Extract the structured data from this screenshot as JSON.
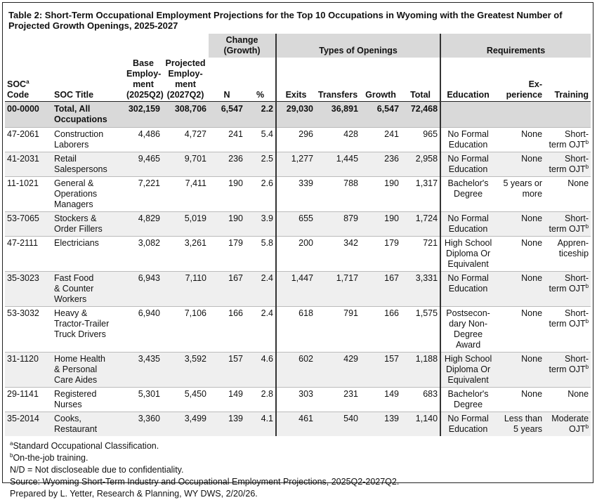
{
  "title": "Table 2: Short-Term Occupational Employment Projections for the Top 10 Occupations in Wyoming with the Greatest Number of Projected Growth Openings, 2025-2027",
  "group_headers": [
    "Change (Growth)",
    "Types of Openings",
    "Requirements"
  ],
  "columns": [
    {
      "text": "SOC",
      "sup": "a",
      "rest": " Code"
    },
    "SOC Title",
    "Base\nEmploy-\nment\n(2025Q2)",
    "Projected\nEmploy-\nment\n(2027Q2)",
    "N",
    "%",
    "Exits",
    "Transfers",
    "Growth",
    "Total",
    "Education",
    "Ex-\nperience",
    "Training"
  ],
  "total_row": [
    "00-0000",
    "Total, All\nOccupations",
    "302,159",
    "308,706",
    "6,547",
    "2.2",
    "29,030",
    "36,891",
    "6,547",
    "72,468"
  ],
  "rows": [
    [
      "47-2061",
      "Construction\nLaborers",
      "4,486",
      "4,727",
      "241",
      "5.4",
      "296",
      "428",
      "241",
      "965",
      "No Formal\nEducation",
      "None",
      {
        "text": "Short-\nterm OJT",
        "sup": "b"
      }
    ],
    [
      "41-2031",
      "Retail\nSalespersons",
      "9,465",
      "9,701",
      "236",
      "2.5",
      "1,277",
      "1,445",
      "236",
      "2,958",
      "No Formal\nEducation",
      "None",
      {
        "text": "Short-\nterm OJT",
        "sup": "b"
      }
    ],
    [
      "11-1021",
      "General &\nOperations\nManagers",
      "7,221",
      "7,411",
      "190",
      "2.6",
      "339",
      "788",
      "190",
      "1,317",
      "Bachelor's\nDegree",
      "5 years or\nmore",
      "None"
    ],
    [
      "53-7065",
      "Stockers &\nOrder Fillers",
      "4,829",
      "5,019",
      "190",
      "3.9",
      "655",
      "879",
      "190",
      "1,724",
      "No Formal\nEducation",
      "None",
      {
        "text": "Short-\nterm OJT",
        "sup": "b"
      }
    ],
    [
      "47-2111",
      "Electricians",
      "3,082",
      "3,261",
      "179",
      "5.8",
      "200",
      "342",
      "179",
      "721",
      "High School\nDiploma Or\nEquivalent",
      "None",
      "Appren-\nticeship"
    ],
    [
      "35-3023",
      "Fast Food\n& Counter\nWorkers",
      "6,943",
      "7,110",
      "167",
      "2.4",
      "1,447",
      "1,717",
      "167",
      "3,331",
      "No Formal\nEducation",
      "None",
      {
        "text": "Short-\nterm OJT",
        "sup": "b"
      }
    ],
    [
      "53-3032",
      "Heavy &\nTractor-Trailer\nTruck Drivers",
      "6,940",
      "7,106",
      "166",
      "2.4",
      "618",
      "791",
      "166",
      "1,575",
      "Postsecon-\ndary Non-\nDegree\nAward",
      "None",
      {
        "text": "Short-\nterm OJT",
        "sup": "b"
      }
    ],
    [
      "31-1120",
      "Home Health\n& Personal\nCare Aides",
      "3,435",
      "3,592",
      "157",
      "4.6",
      "602",
      "429",
      "157",
      "1,188",
      "High School\nDiploma Or\nEquivalent",
      "None",
      {
        "text": "Short-\nterm OJT",
        "sup": "b"
      }
    ],
    [
      "29-1141",
      "Registered\nNurses",
      "5,301",
      "5,450",
      "149",
      "2.8",
      "303",
      "231",
      "149",
      "683",
      "Bachelor's\nDegree",
      "None",
      "None"
    ],
    [
      "35-2014",
      "Cooks,\nRestaurant",
      "3,360",
      "3,499",
      "139",
      "4.1",
      "461",
      "540",
      "139",
      "1,140",
      "No Formal\nEducation",
      "Less than\n5 years",
      {
        "text": "Moderate\nOJT",
        "sup": "b"
      }
    ]
  ],
  "notes": [
    {
      "sup": "a",
      "text": "Standard Occupational Classification."
    },
    {
      "sup": "b",
      "text": "On-the-job training."
    },
    "N/D = Not discloseable due to confidentiality.",
    "Source: Wyoming Short-Term Industry and Occupational Employment Projections, 2025Q2-2027Q2.",
    "Prepared by L. Yetter, Research & Planning, WY DWS, 2/20/26."
  ]
}
